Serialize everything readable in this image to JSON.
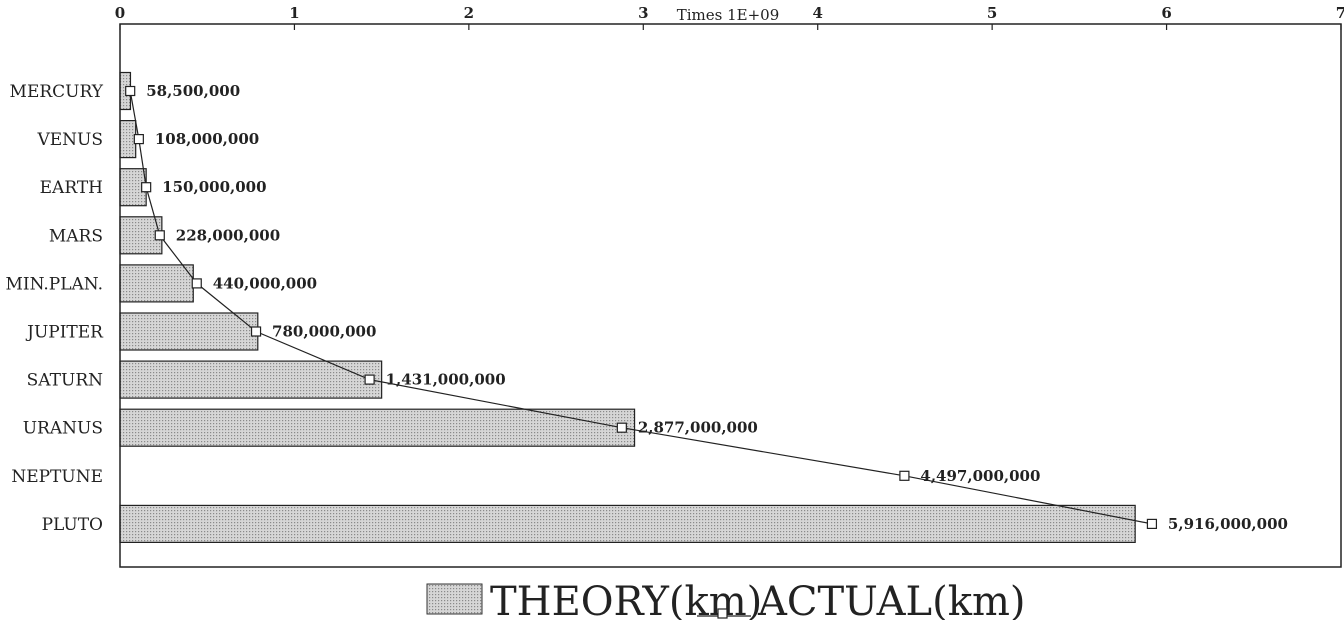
{
  "chart_data": {
    "type": "bar",
    "axis_multiplier": "Times 1E+09",
    "x_ticks": [
      "0",
      "1",
      "2",
      "3",
      "4",
      "5",
      "6",
      "7"
    ],
    "xlim": [
      0,
      7
    ],
    "categories": [
      "MERCURY",
      "VENUS",
      "EARTH",
      "MARS",
      "MIN.PLAN.",
      "JUPITER",
      "SATURN",
      "URANUS",
      "NEPTUNE",
      "PLUTO"
    ],
    "series": [
      {
        "name": "THEORY(km)",
        "render": "bar",
        "values": [
          60000000,
          90000000,
          150000000,
          240000000,
          420000000,
          790000000,
          1500000000,
          2950000000,
          null,
          5820000000
        ]
      },
      {
        "name": "ACTUAL(km)",
        "render": "line",
        "values": [
          58500000,
          108000000,
          150000000,
          228000000,
          440000000,
          780000000,
          1431000000,
          2877000000,
          4497000000,
          5916000000
        ]
      }
    ],
    "data_labels": [
      "58,500,000",
      "108,000,000",
      "150,000,000",
      "228,000,000",
      "440,000,000",
      "780,000,000",
      "1,431,000,000",
      "2,877,000,000",
      "4,497,000,000",
      "5,916,000,000"
    ],
    "legend": {
      "placement": "bottom",
      "theory_label": "THEORY(km)",
      "actual_label": "ACTUAL(km)"
    },
    "colors": {
      "bar_fill": "#c4c4c4",
      "line": "#222222"
    },
    "grid": false
  }
}
